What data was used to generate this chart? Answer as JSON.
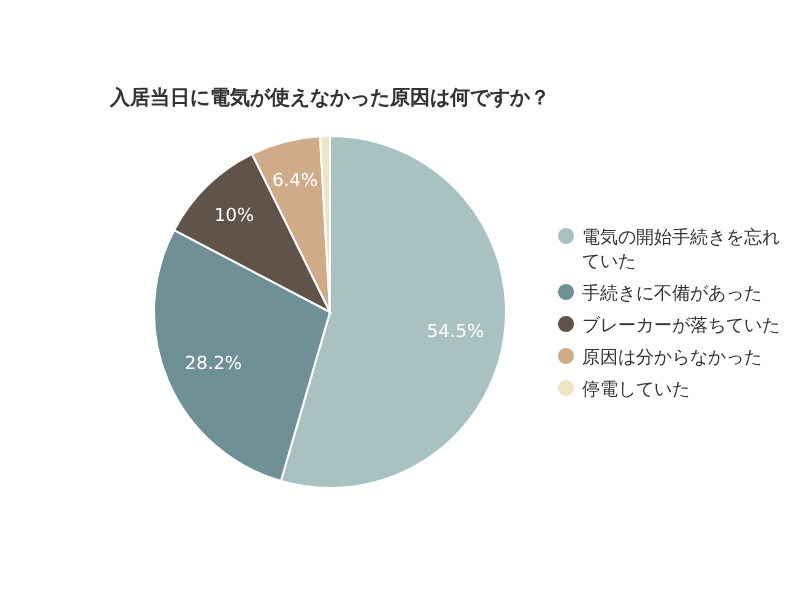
{
  "chart_data": {
    "type": "pie",
    "title": "入居当日に電気が使えなかった原因は何ですか？",
    "categories": [
      "電気の開始手続きを忘れていた",
      "手続きに不備があった",
      "ブレーカーが落ちていた",
      "原因は分からなかった",
      "停電していた"
    ],
    "values": [
      54.5,
      28.2,
      10,
      6.4,
      0.9
    ],
    "colors": [
      "#a9c1c0",
      "#6f9195",
      "#5f534a",
      "#d0ab8a",
      "#efe4c6"
    ],
    "value_labels": [
      "54.5%",
      "28.2%",
      "10%",
      "6.4%",
      null
    ],
    "legend": "right"
  }
}
